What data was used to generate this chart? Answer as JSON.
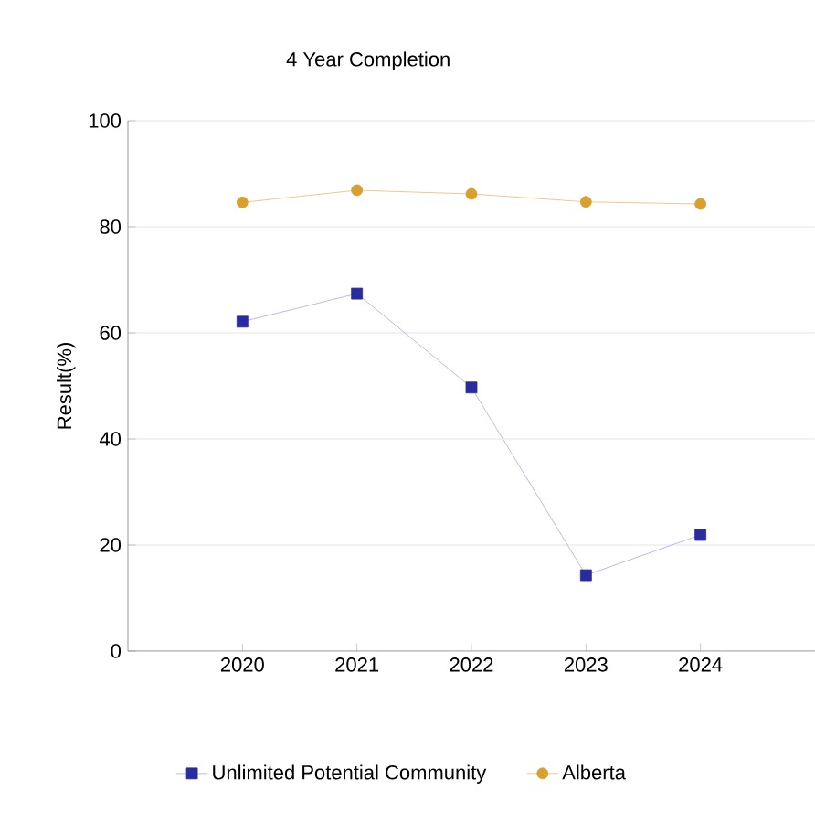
{
  "chart_data": {
    "type": "line",
    "title": "4 Year Completion",
    "ylabel": "Result(%)",
    "categories": [
      "2020",
      "2021",
      "2022",
      "2023",
      "2024"
    ],
    "series": [
      {
        "name": "Unlimited Potential Community",
        "color": "#2b2ba0",
        "marker": "square",
        "values": [
          62.1,
          67.4,
          49.7,
          14.3,
          21.9
        ]
      },
      {
        "name": "Alberta",
        "color": "#d9a030",
        "marker": "circle",
        "values": [
          84.6,
          86.9,
          86.2,
          84.7,
          84.3
        ]
      }
    ],
    "ylim": [
      0,
      100
    ],
    "yticks": [
      0,
      20,
      40,
      60,
      80,
      100
    ],
    "grid": "y",
    "legend": "bottom"
  }
}
